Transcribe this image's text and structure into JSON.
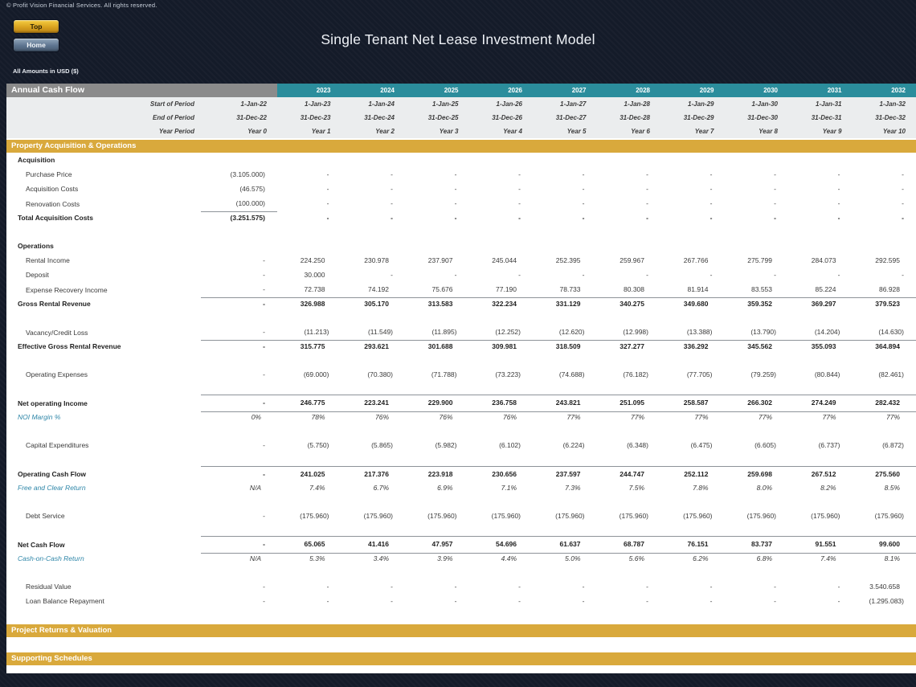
{
  "page": {
    "copyright": "© Profit Vision Financial Services. All rights reserved.",
    "title": "Single Tenant Net Lease Investment Model",
    "amounts_note": "All Amounts in  USD ($)",
    "buttons": {
      "top": "Top",
      "home": "Home"
    }
  },
  "colors": {
    "background_navy": "#141b29",
    "teal_header": "#2b8d9c",
    "gray_header": "#8b8b8b",
    "gold_section": "#d9a93c",
    "ratio_label_blue": "#2e86a8",
    "top_button_gold": "#d9a21f",
    "home_button_blue": "#5e7590"
  },
  "cashflow": {
    "header": "Annual Cash Flow",
    "years": [
      "2023",
      "2024",
      "2025",
      "2026",
      "2027",
      "2028",
      "2029",
      "2030",
      "2031",
      "2032"
    ],
    "period_rows": [
      {
        "label": "Start of Period",
        "values": [
          "1-Jan-22",
          "1-Jan-23",
          "1-Jan-24",
          "1-Jan-25",
          "1-Jan-26",
          "1-Jan-27",
          "1-Jan-28",
          "1-Jan-29",
          "1-Jan-30",
          "1-Jan-31",
          "1-Jan-32"
        ]
      },
      {
        "label": "End of Period",
        "values": [
          "31-Dec-22",
          "31-Dec-23",
          "31-Dec-24",
          "31-Dec-25",
          "31-Dec-26",
          "31-Dec-27",
          "31-Dec-28",
          "31-Dec-29",
          "31-Dec-30",
          "31-Dec-31",
          "31-Dec-32"
        ]
      },
      {
        "label": "Year Period",
        "values": [
          "Year 0",
          "Year 1",
          "Year 2",
          "Year 3",
          "Year 4",
          "Year 5",
          "Year 6",
          "Year 7",
          "Year 8",
          "Year 9",
          "Year 10"
        ]
      }
    ],
    "section_header": "Property Acquisition & Operations",
    "footer_sections": [
      "Project Returns & Valuation",
      "Supporting Schedules"
    ],
    "rows": [
      {
        "type": "subheader",
        "label": "Acquisition"
      },
      {
        "type": "data",
        "style": "normal",
        "label": "Purchase Price",
        "values": [
          "(3.105.000)",
          "-",
          "-",
          "-",
          "-",
          "-",
          "-",
          "-",
          "-",
          "-",
          "-"
        ]
      },
      {
        "type": "data",
        "style": "normal",
        "label": "Acquisition Costs",
        "values": [
          "(46.575)",
          "-",
          "-",
          "-",
          "-",
          "-",
          "-",
          "-",
          "-",
          "-",
          "-"
        ]
      },
      {
        "type": "data",
        "style": "normal",
        "label": "Renovation Costs",
        "values": [
          "(100.000)",
          "-",
          "-",
          "-",
          "-",
          "-",
          "-",
          "-",
          "-",
          "-",
          "-"
        ],
        "border_col0_bottom": true
      },
      {
        "type": "data",
        "style": "bold",
        "label": "Total Acquisition Costs",
        "values": [
          "(3.251.575)",
          "-",
          "-",
          "-",
          "-",
          "-",
          "-",
          "-",
          "-",
          "-",
          "-"
        ]
      },
      {
        "type": "spacer"
      },
      {
        "type": "subheader",
        "label": "Operations"
      },
      {
        "type": "data",
        "style": "normal",
        "label": "Rental Income",
        "values": [
          "-",
          "224.250",
          "230.978",
          "237.907",
          "245.044",
          "252.395",
          "259.967",
          "267.766",
          "275.799",
          "284.073",
          "292.595"
        ]
      },
      {
        "type": "data",
        "style": "normal",
        "label": "Deposit",
        "values": [
          "-",
          "30.000",
          "-",
          "-",
          "-",
          "-",
          "-",
          "-",
          "-",
          "-",
          "-"
        ]
      },
      {
        "type": "data",
        "style": "normal",
        "label": "Expense Recovery Income",
        "values": [
          "-",
          "72.738",
          "74.192",
          "75.676",
          "77.190",
          "78.733",
          "80.308",
          "81.914",
          "83.553",
          "85.224",
          "86.928"
        ],
        "border_bottom": true
      },
      {
        "type": "data",
        "style": "bold",
        "label": "Gross Rental Revenue",
        "values": [
          "-",
          "326.988",
          "305.170",
          "313.583",
          "322.234",
          "331.129",
          "340.275",
          "349.680",
          "359.352",
          "369.297",
          "379.523"
        ]
      },
      {
        "type": "spacer"
      },
      {
        "type": "data",
        "style": "normal",
        "label": "Vacancy/Credit Loss",
        "values": [
          "-",
          "(11.213)",
          "(11.549)",
          "(11.895)",
          "(12.252)",
          "(12.620)",
          "(12.998)",
          "(13.388)",
          "(13.790)",
          "(14.204)",
          "(14.630)"
        ],
        "border_bottom": true
      },
      {
        "type": "data",
        "style": "bold",
        "label": "Effective Gross Rental Revenue",
        "values": [
          "-",
          "315.775",
          "293.621",
          "301.688",
          "309.981",
          "318.509",
          "327.277",
          "336.292",
          "345.562",
          "355.093",
          "364.894"
        ]
      },
      {
        "type": "spacer"
      },
      {
        "type": "data",
        "style": "normal",
        "label": "Operating Expenses",
        "values": [
          "-",
          "(69.000)",
          "(70.380)",
          "(71.788)",
          "(73.223)",
          "(74.688)",
          "(76.182)",
          "(77.705)",
          "(79.259)",
          "(80.844)",
          "(82.461)"
        ]
      },
      {
        "type": "spacer"
      },
      {
        "type": "data",
        "style": "bold",
        "label": "Net operating Income",
        "values": [
          "-",
          "246.775",
          "223.241",
          "229.900",
          "236.758",
          "243.821",
          "251.095",
          "258.587",
          "266.302",
          "274.249",
          "282.432"
        ],
        "border_top": true,
        "border_bottom": true
      },
      {
        "type": "data",
        "style": "ratio",
        "label": "NOI Margin %",
        "values": [
          "0%",
          "78%",
          "76%",
          "76%",
          "76%",
          "77%",
          "77%",
          "77%",
          "77%",
          "77%",
          "77%"
        ]
      },
      {
        "type": "spacer"
      },
      {
        "type": "data",
        "style": "normal",
        "label": "Capital Expenditures",
        "values": [
          "-",
          "(5.750)",
          "(5.865)",
          "(5.982)",
          "(6.102)",
          "(6.224)",
          "(6.348)",
          "(6.475)",
          "(6.605)",
          "(6.737)",
          "(6.872)"
        ]
      },
      {
        "type": "spacer"
      },
      {
        "type": "data",
        "style": "bold",
        "label": "Operating Cash Flow",
        "values": [
          "-",
          "241.025",
          "217.376",
          "223.918",
          "230.656",
          "237.597",
          "244.747",
          "252.112",
          "259.698",
          "267.512",
          "275.560"
        ],
        "border_top": true
      },
      {
        "type": "data",
        "style": "ratio",
        "label": "Free and Clear Return",
        "values": [
          "N/A",
          "7.4%",
          "6.7%",
          "6.9%",
          "7.1%",
          "7.3%",
          "7.5%",
          "7.8%",
          "8.0%",
          "8.2%",
          "8.5%"
        ]
      },
      {
        "type": "spacer"
      },
      {
        "type": "data",
        "style": "normal",
        "label": "Debt Service",
        "values": [
          "-",
          "(175.960)",
          "(175.960)",
          "(175.960)",
          "(175.960)",
          "(175.960)",
          "(175.960)",
          "(175.960)",
          "(175.960)",
          "(175.960)",
          "(175.960)"
        ]
      },
      {
        "type": "spacer"
      },
      {
        "type": "data",
        "style": "bold",
        "label": "Net Cash Flow",
        "values": [
          "-",
          "65.065",
          "41.416",
          "47.957",
          "54.696",
          "61.637",
          "68.787",
          "76.151",
          "83.737",
          "91.551",
          "99.600"
        ],
        "border_top": true,
        "border_bottom": true
      },
      {
        "type": "data",
        "style": "ratio",
        "label": "Cash-on-Cash Return",
        "values": [
          "N/A",
          "5.3%",
          "3.4%",
          "3.9%",
          "4.4%",
          "5.0%",
          "5.6%",
          "6.2%",
          "6.8%",
          "7.4%",
          "8.1%"
        ]
      },
      {
        "type": "spacer"
      },
      {
        "type": "data",
        "style": "normal",
        "label": "Residual Value",
        "values": [
          "-",
          "-",
          "-",
          "-",
          "-",
          "-",
          "-",
          "-",
          "-",
          "-",
          "3.540.658"
        ]
      },
      {
        "type": "data",
        "style": "normal",
        "label": "Loan Balance Repayment",
        "values": [
          "-",
          "-",
          "-",
          "-",
          "-",
          "-",
          "-",
          "-",
          "-",
          "-",
          "(1.295.083)"
        ]
      }
    ]
  }
}
